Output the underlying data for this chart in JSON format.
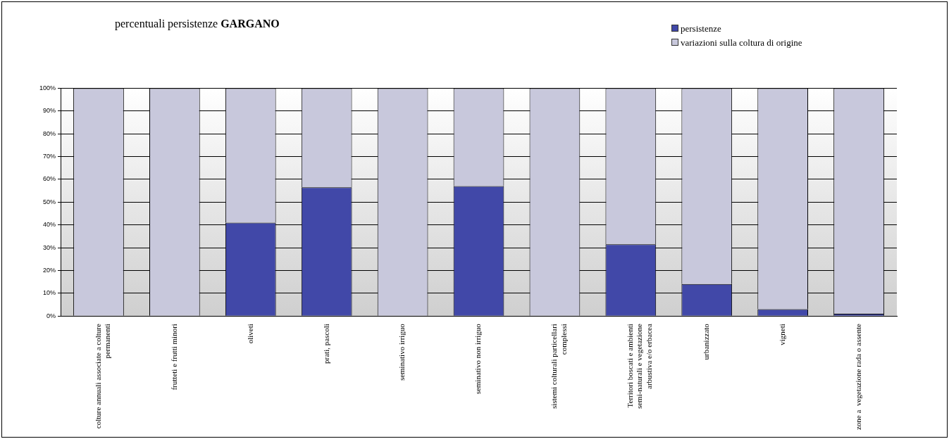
{
  "chart_data": {
    "type": "bar",
    "stacked": true,
    "title": "percentuali persistenze GARGANO",
    "categories": [
      "colture annuali associate a colture permanenti",
      "frutteti e frutti minori",
      "oliveti",
      "prati, pascoli",
      "seminativo irriguo",
      "seminativo non irriguo",
      "sistemi colturali particellari complessi",
      "Territori boscati e ambienti semi-naturali e vegetazione arbustiva e/o erbacea",
      "urbanizzato",
      "vigneti",
      "zone a  vegetazione rada o assente"
    ],
    "series": [
      {
        "name": "persistenze",
        "color": "#4148a8",
        "values": [
          0,
          0,
          41,
          56.5,
          0,
          57,
          0,
          31.5,
          14,
          3,
          1
        ]
      },
      {
        "name": "variazioni sulla coltura di origine",
        "color": "#c8c8dc",
        "values": [
          100,
          100,
          59,
          43.5,
          100,
          43,
          100,
          68.5,
          86,
          97,
          99
        ]
      }
    ],
    "ylim": [
      0,
      100
    ],
    "yticks": [
      {
        "value": 0,
        "label": "0%"
      },
      {
        "value": 10,
        "label": "10%"
      },
      {
        "value": 20,
        "label": "20%"
      },
      {
        "value": 30,
        "label": "30%"
      },
      {
        "value": 40,
        "label": "40%"
      },
      {
        "value": 50,
        "label": "50%"
      },
      {
        "value": 60,
        "label": "60%"
      },
      {
        "value": 70,
        "label": "70%"
      },
      {
        "value": 80,
        "label": "80%"
      },
      {
        "value": 90,
        "label": "90%"
      },
      {
        "value": 100,
        "label": "100%"
      }
    ],
    "grid": "y",
    "legend": "top right"
  }
}
